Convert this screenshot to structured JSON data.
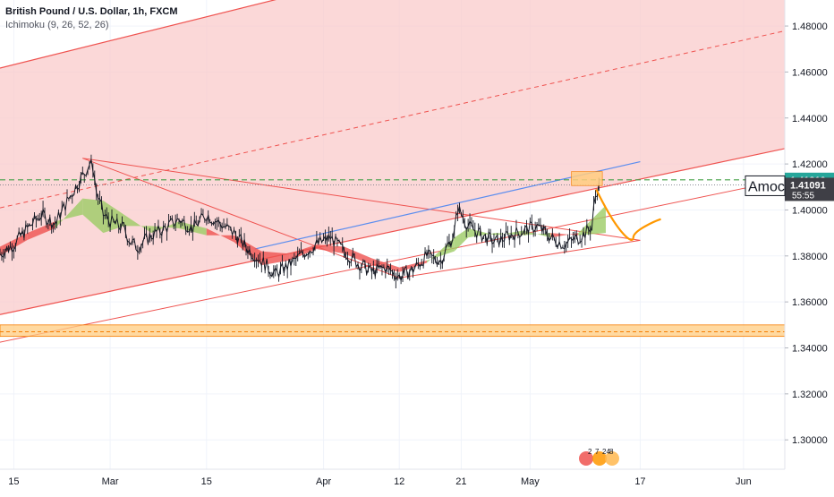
{
  "legend": {
    "title": "British Pound / U.S. Dollar, 1h, FXCM",
    "study": "Ichimoku (9, 26, 52, 26)"
  },
  "colors": {
    "channel_fill": "#f9c7c7",
    "channel_line": "#ef5350",
    "candle": "#131722",
    "cloud_bull": "#9ccc65",
    "cloud_bear": "#ef5350",
    "support_zone": "#ffcc80",
    "support_line": "#f57c00",
    "resistance_dashed": "#43a047",
    "trend_blue": "#5b8def",
    "projection": "#ff9800"
  },
  "chart_data": {
    "type": "line",
    "title": "British Pound / U.S. Dollar, 1h, FXCM",
    "indicator": "Ichimoku (9, 26, 52, 26)",
    "ylim": [
      1.28722,
      1.49132
    ],
    "y_ticks": [
      1.48,
      1.46,
      1.44,
      1.42,
      1.4,
      1.38,
      1.36,
      1.34,
      1.32,
      1.3
    ],
    "y_tick_labels": [
      "1.48000",
      "1.46000",
      "1.44000",
      "1.42000",
      "1.40000",
      "1.38000",
      "1.36000",
      "1.34000",
      "1.32000",
      "1.30000"
    ],
    "x_ticks": [
      {
        "label": "15",
        "day": 0
      },
      {
        "label": "Mar",
        "day": 14
      },
      {
        "label": "15",
        "day": 28
      },
      {
        "label": "Apr",
        "day": 45
      },
      {
        "label": "12",
        "day": 56
      },
      {
        "label": "21",
        "day": 65
      },
      {
        "label": "May",
        "day": 75
      },
      {
        "label": "17",
        "day": 91
      },
      {
        "label": "Jun",
        "day": 106
      }
    ],
    "xlim": [
      -2,
      112
    ],
    "price": {
      "day": [
        -2,
        0,
        2,
        4,
        6,
        8,
        10,
        11,
        11.5,
        12,
        13,
        14,
        16,
        17,
        18,
        20,
        22,
        24,
        26,
        28,
        30,
        32,
        34,
        36,
        38,
        40,
        42,
        44,
        46,
        48,
        50,
        52,
        54,
        56,
        58,
        60,
        62,
        64,
        64.5,
        66,
        68,
        70,
        72,
        74,
        76,
        78,
        80,
        82,
        83,
        84,
        84.3,
        84.6,
        85
      ],
      "close": [
        1.381,
        1.385,
        1.392,
        1.398,
        1.394,
        1.405,
        1.415,
        1.42,
        1.419,
        1.408,
        1.398,
        1.395,
        1.392,
        1.386,
        1.384,
        1.389,
        1.392,
        1.396,
        1.392,
        1.398,
        1.394,
        1.39,
        1.383,
        1.378,
        1.372,
        1.376,
        1.381,
        1.385,
        1.388,
        1.382,
        1.377,
        1.373,
        1.375,
        1.371,
        1.374,
        1.38,
        1.378,
        1.39,
        1.401,
        1.393,
        1.389,
        1.386,
        1.389,
        1.391,
        1.393,
        1.388,
        1.385,
        1.388,
        1.39,
        1.393,
        1.402,
        1.408,
        1.41
      ]
    },
    "cloud": {
      "day": [
        -2,
        2,
        6,
        10,
        13,
        16,
        20,
        24,
        28,
        32,
        36,
        40,
        44,
        48,
        52,
        56,
        60,
        64,
        66,
        70,
        74,
        78,
        82,
        86
      ],
      "a": [
        1.38,
        1.387,
        1.392,
        1.405,
        1.404,
        1.398,
        1.39,
        1.395,
        1.392,
        1.386,
        1.376,
        1.378,
        1.383,
        1.381,
        1.376,
        1.373,
        1.377,
        1.388,
        1.392,
        1.389,
        1.391,
        1.388,
        1.39,
        1.402
      ],
      "b": [
        1.384,
        1.39,
        1.395,
        1.398,
        1.39,
        1.393,
        1.393,
        1.392,
        1.389,
        1.389,
        1.382,
        1.381,
        1.385,
        1.384,
        1.379,
        1.375,
        1.378,
        1.382,
        1.388,
        1.39,
        1.389,
        1.39,
        1.389,
        1.39
      ]
    },
    "resistance_level": 1.4131,
    "last_price": 1.41091,
    "last_price_label": "1.41091",
    "resistance_label": "1.41310",
    "countdown_label": "55:55",
    "support_zone": [
      1.345,
      1.35
    ],
    "support_level": 1.347,
    "channel": {
      "upper": [
        [
          -2,
          1.4617
        ],
        [
          46,
          1.4974
        ]
      ],
      "mid": [
        [
          -2,
          1.4009
        ],
        [
          112,
          1.4779
        ]
      ],
      "lower": [
        [
          -2,
          1.3545
        ],
        [
          112,
          1.4267
        ]
      ],
      "lowest": [
        [
          -2,
          1.3425
        ],
        [
          112,
          1.4131
        ]
      ]
    },
    "triangle": [
      [
        10,
        1.4225
      ],
      [
        91,
        1.3868
      ],
      [
        56,
        1.3705
      ]
    ],
    "trend_blue": [
      [
        35,
        1.383
      ],
      [
        91,
        1.421
      ]
    ],
    "target_zone": [
      [
        81,
        1.4167
      ],
      [
        85.5,
        1.4106
      ]
    ],
    "projection": [
      [
        84.6,
        1.409
      ],
      [
        88,
        1.392
      ],
      [
        90,
        1.388
      ],
      [
        94,
        1.396
      ]
    ],
    "annotation": "Amoc"
  },
  "footer_badges": [
    "2",
    "7",
    "24",
    "8"
  ]
}
